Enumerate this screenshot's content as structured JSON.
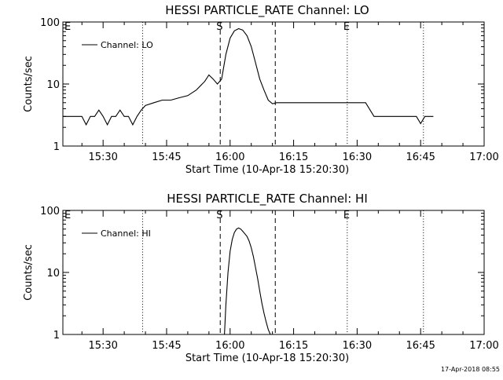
{
  "footer": {
    "timestamp": "17-Apr-2018 08:55"
  },
  "colors": {
    "background": "#ffffff",
    "foreground": "#000000"
  },
  "chart_data": [
    {
      "type": "line",
      "title": "HESSI PARTICLE_RATE Channel: LO",
      "xlabel": "Start Time (10-Apr-18 15:20:30)",
      "ylabel": "Counts/sec",
      "yscale": "log",
      "ylim": [
        1,
        100
      ],
      "xlim": [
        "15:20:30",
        "17:00:00"
      ],
      "x_ticks": [
        "15:30",
        "15:45",
        "16:00",
        "16:15",
        "16:30",
        "16:45",
        "17:00"
      ],
      "y_ticks": [
        "1",
        "10",
        "100"
      ],
      "grid": false,
      "legend": {
        "position": "top-left",
        "entries": [
          "Channel: LO"
        ]
      },
      "vlines": [
        {
          "time": "15:39:20",
          "style": "dotted",
          "label": ""
        },
        {
          "time": "15:57:40",
          "style": "dashed",
          "label": "S"
        },
        {
          "time": "16:10:40",
          "style": "dashed",
          "label": ""
        },
        {
          "time": "16:27:40",
          "style": "dotted",
          "label": "E"
        },
        {
          "time": "16:45:40",
          "style": "dotted",
          "label": ""
        }
      ],
      "corner_labels": [
        "E"
      ],
      "series": [
        {
          "name": "Channel: LO",
          "x": [
            "15:20:30",
            "15:25:00",
            "15:26:00",
            "15:27:00",
            "15:28:00",
            "15:29:00",
            "15:30:00",
            "15:31:00",
            "15:32:00",
            "15:33:00",
            "15:34:00",
            "15:35:00",
            "15:36:00",
            "15:37:00",
            "15:38:00",
            "15:39:00",
            "15:40:00",
            "15:42:00",
            "15:44:00",
            "15:46:00",
            "15:48:00",
            "15:50:00",
            "15:52:00",
            "15:54:00",
            "15:55:00",
            "15:56:00",
            "15:57:00",
            "15:58:00",
            "15:59:00",
            "16:00:00",
            "16:01:00",
            "16:02:00",
            "16:03:00",
            "16:04:00",
            "16:05:00",
            "16:06:00",
            "16:07:00",
            "16:08:00",
            "16:09:00",
            "16:10:00",
            "16:11:00",
            "16:12:00",
            "16:15:00",
            "16:20:00",
            "16:25:00",
            "16:28:00",
            "16:30:00",
            "16:32:00",
            "16:34:00",
            "16:36:00",
            "16:38:00",
            "16:40:00",
            "16:42:00",
            "16:44:00",
            "16:45:00",
            "16:46:00",
            "16:48:00"
          ],
          "y": [
            3,
            3,
            2.2,
            3,
            3,
            3.8,
            3,
            2.2,
            3,
            3,
            3.8,
            3,
            3,
            2.2,
            3,
            3.8,
            4.5,
            5,
            5.5,
            5.5,
            6,
            6.5,
            8,
            11,
            14,
            12,
            10,
            12,
            30,
            55,
            72,
            78,
            74,
            60,
            40,
            22,
            12,
            8,
            5.5,
            4.8,
            5,
            5,
            5,
            5,
            5,
            5,
            5,
            5,
            3,
            3,
            3,
            3,
            3,
            3,
            2.3,
            3,
            3
          ]
        }
      ]
    },
    {
      "type": "line",
      "title": "HESSI PARTICLE_RATE Channel: HI",
      "xlabel": "Start Time (10-Apr-18 15:20:30)",
      "ylabel": "Counts/sec",
      "yscale": "log",
      "ylim": [
        1,
        100
      ],
      "xlim": [
        "15:20:30",
        "17:00:00"
      ],
      "x_ticks": [
        "15:30",
        "15:45",
        "16:00",
        "16:15",
        "16:30",
        "16:45",
        "17:00"
      ],
      "y_ticks": [
        "1",
        "10",
        "100"
      ],
      "grid": false,
      "legend": {
        "position": "top-left",
        "entries": [
          "Channel: HI"
        ]
      },
      "vlines": [
        {
          "time": "15:39:20",
          "style": "dotted",
          "label": ""
        },
        {
          "time": "15:57:40",
          "style": "dashed",
          "label": "S"
        },
        {
          "time": "16:10:40",
          "style": "dashed",
          "label": ""
        },
        {
          "time": "16:27:40",
          "style": "dotted",
          "label": "E"
        },
        {
          "time": "16:45:40",
          "style": "dotted",
          "label": ""
        }
      ],
      "corner_labels": [
        "E"
      ],
      "series": [
        {
          "name": "Channel: HI",
          "x": [
            "15:58:40",
            "15:59:00",
            "15:59:30",
            "16:00:00",
            "16:00:30",
            "16:01:00",
            "16:01:30",
            "16:02:00",
            "16:02:30",
            "16:03:00",
            "16:03:30",
            "16:04:00",
            "16:04:30",
            "16:05:00",
            "16:05:30",
            "16:06:00",
            "16:06:30",
            "16:07:00",
            "16:07:30",
            "16:08:00",
            "16:08:30",
            "16:09:00",
            "16:09:30"
          ],
          "y": [
            1,
            3,
            10,
            22,
            34,
            44,
            50,
            52,
            50,
            46,
            42,
            38,
            32,
            25,
            18,
            12,
            8,
            5,
            3.2,
            2.2,
            1.6,
            1.2,
            1
          ]
        }
      ]
    }
  ]
}
